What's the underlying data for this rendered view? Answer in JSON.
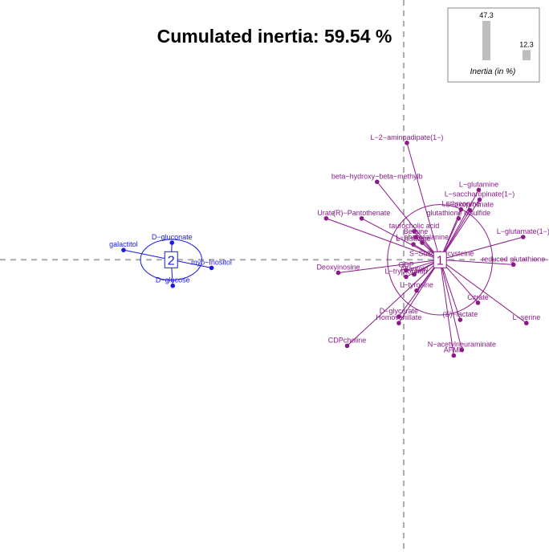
{
  "chart_data": {
    "type": "scatter",
    "title": "Cumulated inertia: 59.54 %",
    "xlim": [
      -5.0,
      1.8
    ],
    "ylim": [
      -3.6,
      3.2
    ],
    "colors": {
      "cluster1": "#8B1A89",
      "cluster2": "#1A1AE6",
      "axis": "#AAAAAA"
    },
    "inertia": {
      "axis_label": "Inertia (in %)",
      "bars": [
        {
          "label": "47.3",
          "value": 47.3
        },
        {
          "label": "12.3",
          "value": 12.3
        }
      ]
    },
    "clusters": [
      {
        "id": "1",
        "color": "#8B1A89",
        "center": [
          0.45,
          0.0
        ],
        "ellipse": {
          "rx": 0.65,
          "ry": 0.68
        },
        "points": [
          {
            "label": "L−2−aminoadipate(1−)",
            "x": 0.04,
            "y": 1.44
          },
          {
            "label": "beta−hydroxy−beta−methylb",
            "x": -0.33,
            "y": 0.96
          },
          {
            "label": "L−glutamine",
            "x": 0.93,
            "y": 0.86
          },
          {
            "label": "L−saccharopinate(1−)",
            "x": 0.94,
            "y": 0.74
          },
          {
            "label": "L−threonine",
            "x": 0.71,
            "y": 0.62
          },
          {
            "label": "5−oxoprolinate",
            "x": 0.82,
            "y": 0.61
          },
          {
            "label": "glutathione disulfide",
            "x": 0.68,
            "y": 0.51
          },
          {
            "label": "Urate",
            "x": -0.96,
            "y": 0.51
          },
          {
            "label": "(R)−Pantothenate",
            "x": -0.52,
            "y": 0.51
          },
          {
            "label": "taurocholic acid",
            "x": 0.13,
            "y": 0.35
          },
          {
            "label": "Betaine",
            "x": 0.15,
            "y": 0.28
          },
          {
            "label": "L−phenylalanine",
            "x": 0.23,
            "y": 0.21
          },
          {
            "label": "L−histidine",
            "x": 0.12,
            "y": 0.19
          },
          {
            "label": "L−glutamate(1−)",
            "x": 1.48,
            "y": 0.28
          },
          {
            "label": "S−Sulfo−L−cysteine",
            "x": 0.47,
            "y": 0.01
          },
          {
            "label": "reduced glutathione",
            "x": 1.36,
            "y": -0.06
          },
          {
            "label": "GDP",
            "x": 0.03,
            "y": -0.13
          },
          {
            "label": "Deoxyinosine",
            "x": -0.81,
            "y": -0.16
          },
          {
            "label": "L−tryptophan",
            "x": 0.03,
            "y": -0.21
          },
          {
            "label": "Allantoin",
            "x": 0.13,
            "y": -0.18
          },
          {
            "label": "L−tyrosine",
            "x": 0.16,
            "y": -0.38
          },
          {
            "label": "Citrate",
            "x": 0.92,
            "y": -0.53
          },
          {
            "label": "D−glycerate",
            "x": -0.06,
            "y": -0.7
          },
          {
            "label": "(S)−lactate",
            "x": 0.7,
            "y": -0.74
          },
          {
            "label": "L−serine",
            "x": 1.52,
            "y": -0.78
          },
          {
            "label": "Homovanillate",
            "x": -0.06,
            "y": -0.78
          },
          {
            "label": "CDPcholine",
            "x": -0.7,
            "y": -1.06
          },
          {
            "label": "N−acetylneuraminate",
            "x": 0.72,
            "y": -1.11
          },
          {
            "label": "AFMK",
            "x": 0.62,
            "y": -1.18
          }
        ]
      },
      {
        "id": "2",
        "color": "#1A1AE6",
        "center": [
          -2.88,
          0.0
        ],
        "ellipse": {
          "rx": 0.38,
          "ry": 0.25
        },
        "points": [
          {
            "label": "D−gluconate",
            "x": -2.87,
            "y": 0.21
          },
          {
            "label": "galactitol",
            "x": -3.47,
            "y": 0.12
          },
          {
            "label": "myo−Inositol",
            "x": -2.38,
            "y": -0.1
          },
          {
            "label": "D−glucose",
            "x": -2.86,
            "y": -0.32
          }
        ]
      }
    ]
  }
}
